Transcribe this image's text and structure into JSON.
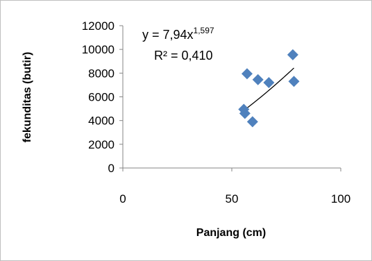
{
  "chart_data": {
    "type": "scatter",
    "xlabel": "Panjang (cm)",
    "ylabel": "fekunditas (butir)",
    "xlim": [
      0,
      100
    ],
    "ylim": [
      0,
      12000
    ],
    "x_ticks": [
      "0",
      "50",
      "100"
    ],
    "y_ticks": [
      "0",
      "2000",
      "4000",
      "6000",
      "8000",
      "10000",
      "12000"
    ],
    "grid": false,
    "legend": "none",
    "marker_color": "#4f81bd",
    "points": [
      {
        "x": 55.5,
        "y": 4950
      },
      {
        "x": 56,
        "y": 4600
      },
      {
        "x": 57,
        "y": 7950
      },
      {
        "x": 59.5,
        "y": 3900
      },
      {
        "x": 62,
        "y": 7450
      },
      {
        "x": 67,
        "y": 7200
      },
      {
        "x": 78,
        "y": 9550
      },
      {
        "x": 78.5,
        "y": 7300
      }
    ],
    "trendline": {
      "type": "power",
      "coefficient": 7.94,
      "exponent": 1.597,
      "x_range": [
        55.5,
        78.5
      ],
      "color": "#000000"
    },
    "annotations": {
      "equation_prefix": "y = 7,94x",
      "equation_exponent": "1,597",
      "r_squared": "R² = 0,410"
    }
  }
}
